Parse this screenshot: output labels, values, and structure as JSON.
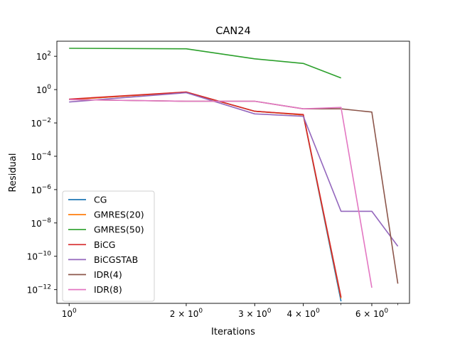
{
  "chart_data": {
    "type": "line",
    "title": "CAN24",
    "xlabel": "Iterations",
    "ylabel": "Residual",
    "xscale": "log",
    "yscale": "log",
    "xlim": [
      0.93,
      7.5
    ],
    "ylim": [
      1.5e-13,
      800
    ],
    "grid": false,
    "legend_position": "lower-left",
    "x_ticks": [
      {
        "value": 1,
        "label": "10",
        "exp": "0"
      },
      {
        "value": 2,
        "label": "2 × 10",
        "exp": "0"
      },
      {
        "value": 3,
        "label": "3 × 10",
        "exp": "0"
      },
      {
        "value": 4,
        "label": "4 × 10",
        "exp": "0"
      },
      {
        "value": 6,
        "label": "6 × 10",
        "exp": "0"
      }
    ],
    "y_ticks": [
      {
        "value": 100.0,
        "label": "10",
        "exp": "2"
      },
      {
        "value": 1.0,
        "label": "10",
        "exp": "0"
      },
      {
        "value": 0.01,
        "label": "10",
        "exp": "−2"
      },
      {
        "value": 0.0001,
        "label": "10",
        "exp": "−4"
      },
      {
        "value": 1e-06,
        "label": "10",
        "exp": "−6"
      },
      {
        "value": 1e-08,
        "label": "10",
        "exp": "−8"
      },
      {
        "value": 1e-10,
        "label": "10",
        "exp": "−10"
      },
      {
        "value": 1e-12,
        "label": "10",
        "exp": "−12"
      }
    ],
    "series": [
      {
        "name": "CG",
        "color": "#1f77b4",
        "x": [
          1,
          2,
          3,
          4,
          5
        ],
        "y": [
          0.25,
          0.7,
          0.05,
          0.03,
          2e-13
        ]
      },
      {
        "name": "GMRES(20)",
        "color": "#ff7f0e",
        "x": [
          1,
          2,
          3,
          4,
          5
        ],
        "y": [
          0.25,
          0.7,
          0.05,
          0.03,
          3e-13
        ]
      },
      {
        "name": "GMRES(50)",
        "color": "#2ca02c",
        "x": [
          1,
          2,
          3,
          4,
          5
        ],
        "y": [
          300,
          280,
          70,
          37,
          5
        ]
      },
      {
        "name": "BiCG",
        "color": "#d62728",
        "x": [
          1,
          2,
          3,
          4,
          5
        ],
        "y": [
          0.27,
          0.72,
          0.05,
          0.032,
          3.5e-13
        ]
      },
      {
        "name": "BiCGSTAB",
        "color": "#9467bd",
        "x": [
          1,
          2,
          3,
          4,
          5,
          6,
          7
        ],
        "y": [
          0.18,
          0.65,
          0.035,
          0.025,
          5e-08,
          5e-08,
          4e-10
        ]
      },
      {
        "name": "IDR(4)",
        "color": "#8c564b",
        "x": [
          1,
          2,
          3,
          4,
          5,
          6,
          7
        ],
        "y": [
          0.25,
          0.2,
          0.2,
          0.07,
          0.07,
          0.045,
          2.3e-12
        ]
      },
      {
        "name": "IDR(8)",
        "color": "#e377c2",
        "x": [
          1,
          2,
          3,
          4,
          5,
          6
        ],
        "y": [
          0.25,
          0.2,
          0.2,
          0.07,
          0.085,
          1.3e-12
        ]
      }
    ]
  }
}
